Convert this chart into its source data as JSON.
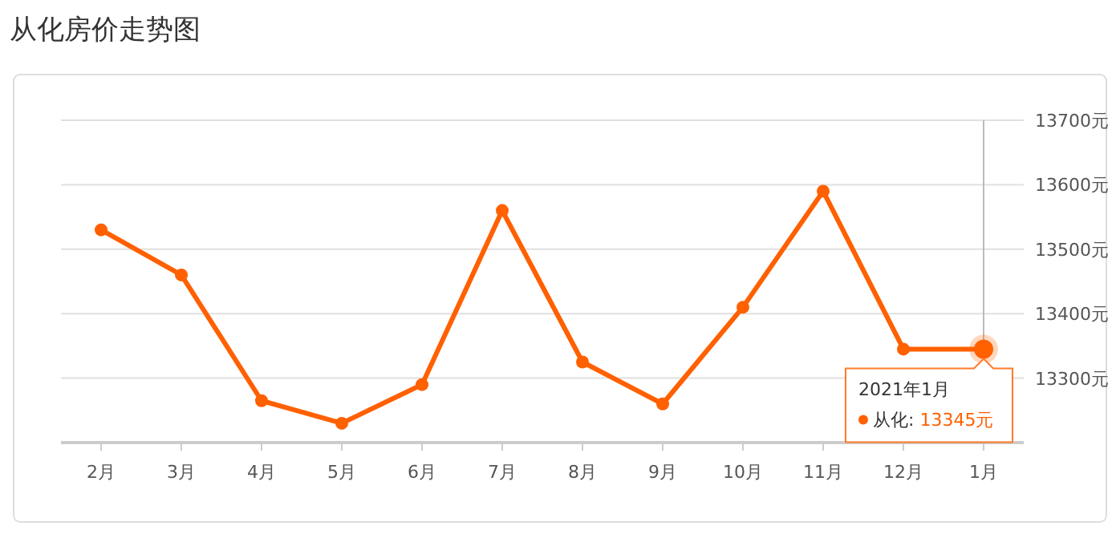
{
  "chart_data": {
    "type": "line",
    "title": "从化房价走势图",
    "categories": [
      "2月",
      "3月",
      "4月",
      "5月",
      "6月",
      "7月",
      "8月",
      "9月",
      "10月",
      "11月",
      "12月",
      "1月"
    ],
    "series": [
      {
        "color": "#ff6000",
        "values": [
          13530,
          13460,
          13265,
          13230,
          13290,
          13560,
          13325,
          13260,
          13410,
          13590,
          13345,
          13345
        ],
        "value_labels": [
          null,
          null,
          null,
          null,
          null,
          null,
          null,
          null,
          null,
          null,
          null,
          "13345元"
        ]
      }
    ],
    "ylim": [
      13200,
      13700
    ],
    "yticks": [
      {
        "value": 13200,
        "label": null
      },
      {
        "value": 13300,
        "label": "13300元"
      },
      {
        "value": 13400,
        "label": "13400元"
      },
      {
        "value": 13500,
        "label": "13500元"
      },
      {
        "value": 13600,
        "label": "13600元"
      },
      {
        "value": 13700,
        "label": "13700元"
      }
    ],
    "grid": "y",
    "marker": "circle",
    "line_style": "solid",
    "ref_lines": [
      {
        "axis": "x",
        "value": "1月",
        "color": "#bbbbbb"
      }
    ],
    "annotations": [
      {
        "text": "2021年1月",
        "x": "1月",
        "y": 13345
      },
      "从化:"
    ]
  }
}
